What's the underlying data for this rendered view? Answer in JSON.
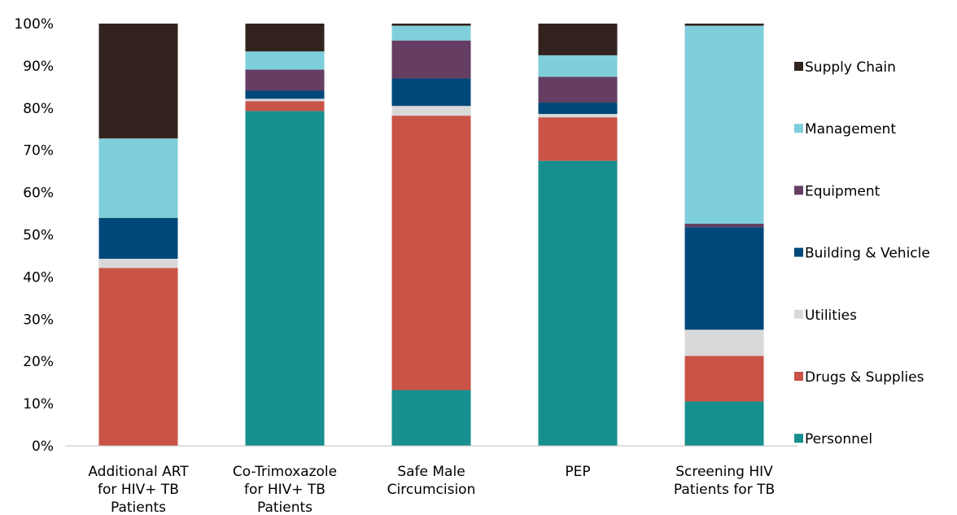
{
  "chart_data": {
    "type": "bar",
    "stacked": true,
    "percent": true,
    "categories": [
      [
        "Additional ART",
        "for HIV+ TB",
        "Patients"
      ],
      [
        "Co-Trimoxazole",
        "for HIV+ TB",
        "Patients"
      ],
      [
        "Safe Male",
        "Circumcision"
      ],
      [
        "PEP"
      ],
      [
        "Screening HIV",
        "Patients for TB"
      ]
    ],
    "yticks": [
      "0%",
      "10%",
      "20%",
      "30%",
      "40%",
      "50%",
      "60%",
      "70%",
      "80%",
      "90%",
      "100%"
    ],
    "ylim": [
      0,
      100
    ],
    "legend_position": "right",
    "series": [
      {
        "name": "Personnel",
        "color": "#178F8F",
        "values": [
          0,
          79.3,
          13.2,
          67.5,
          10.5
        ]
      },
      {
        "name": "Drugs & Supplies",
        "color": "#C95346",
        "values": [
          42.1,
          2.3,
          65.0,
          10.3,
          10.8
        ]
      },
      {
        "name": "Utilities",
        "color": "#D9D9D9",
        "values": [
          2.2,
          0.6,
          2.3,
          0.8,
          6.2
        ]
      },
      {
        "name": "Building & Vehicle",
        "color": "#004879",
        "values": [
          9.7,
          1.9,
          6.5,
          2.7,
          24.3
        ]
      },
      {
        "name": "Equipment",
        "color": "#663D63",
        "values": [
          0,
          5.0,
          9.0,
          6.1,
          0.8
        ]
      },
      {
        "name": "Management",
        "color": "#7FCEDB",
        "values": [
          18.8,
          4.3,
          3.5,
          5.1,
          46.9
        ]
      },
      {
        "name": "Supply Chain",
        "color": "#32231E",
        "values": [
          27.2,
          6.6,
          0.5,
          7.5,
          0.5
        ]
      }
    ]
  }
}
